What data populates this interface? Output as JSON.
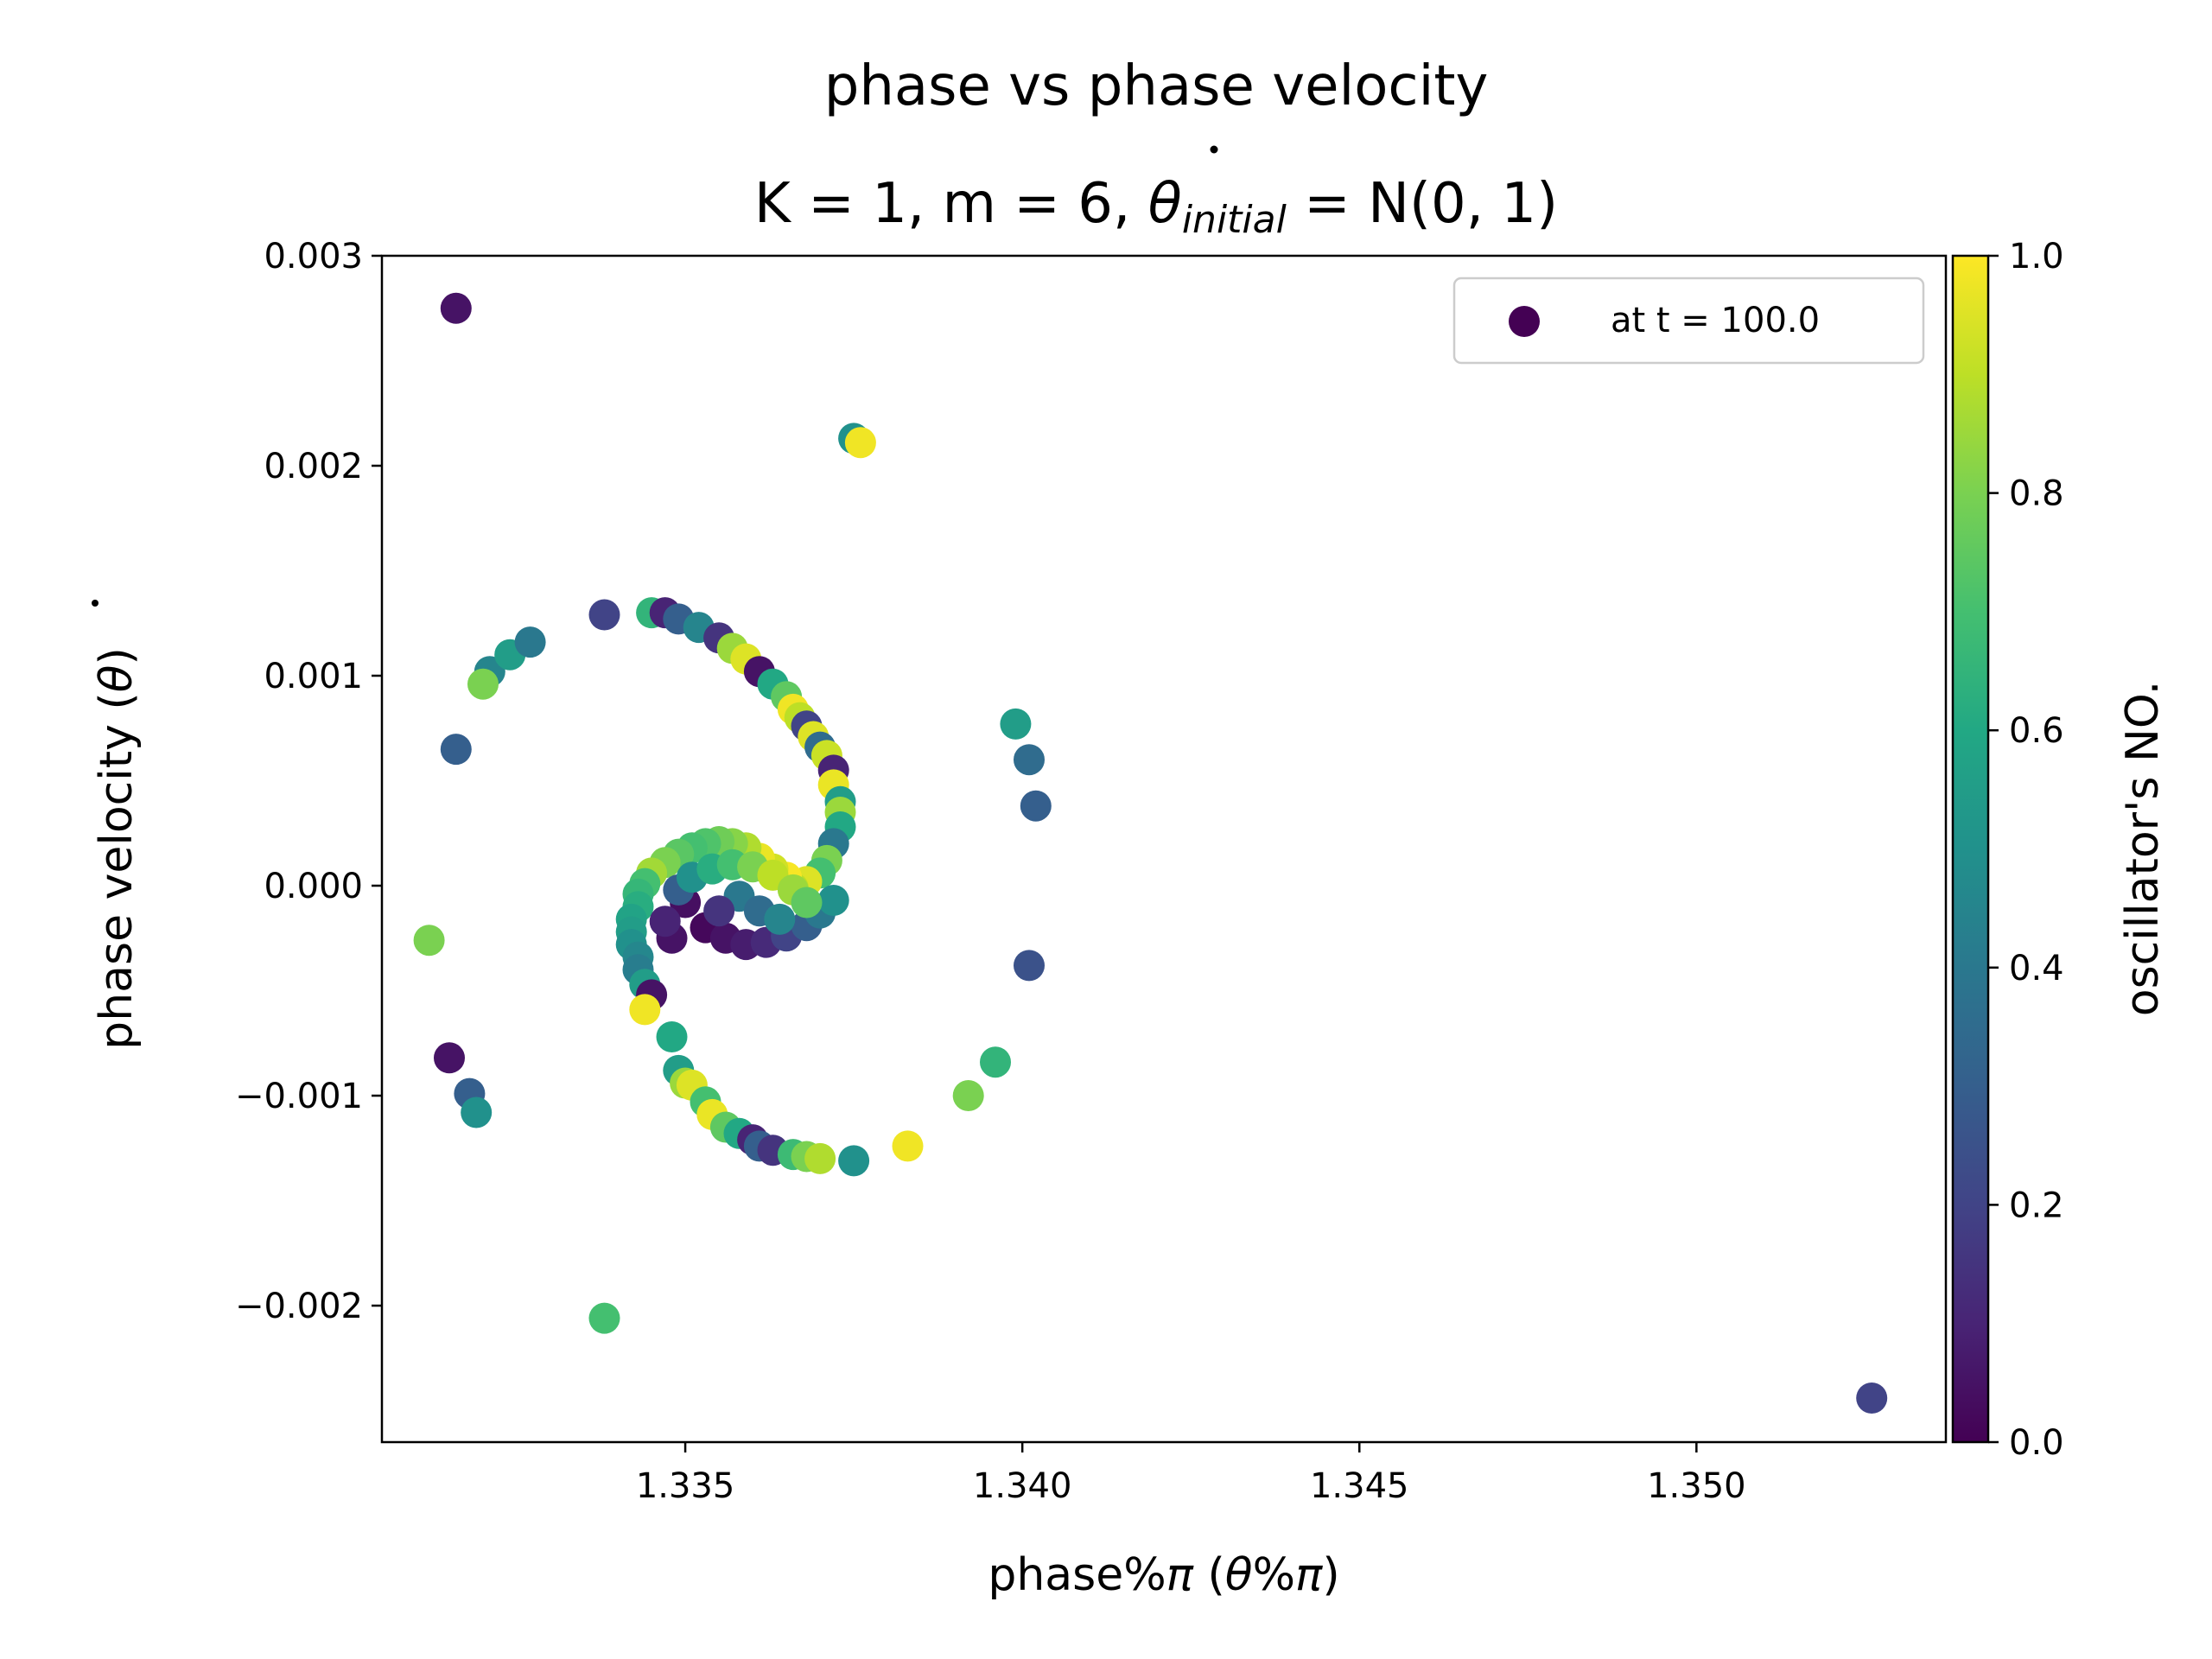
{
  "chart_data": {
    "type": "scatter",
    "title": "phase vs phase velocity",
    "subtitle": {
      "prefix": "K = 1, m = 6, ",
      "symbol": "θ",
      "subscript": "initial",
      "suffix": " = N(0, 1)"
    },
    "xlabel": {
      "prefix": "phase%",
      "pi": "π",
      "mid": " (",
      "theta": "θ",
      "pct": "%",
      "pi2": "π",
      "end": ")"
    },
    "ylabel": {
      "prefix": "phase velocity (",
      "theta": "θ",
      "end": ")"
    },
    "colorbar_label": "oscillator's NO.",
    "legend": {
      "label": "at t = 100.0",
      "position": "upper right"
    },
    "colormap": "viridis",
    "xlim": [
      1.3305,
      1.3537
    ],
    "ylim": [
      -0.00265,
      0.003
    ],
    "xticks": [
      1.335,
      1.34,
      1.345,
      1.35
    ],
    "xtick_labels": [
      "1.335",
      "1.340",
      "1.345",
      "1.350"
    ],
    "yticks": [
      -0.002,
      -0.001,
      0.0,
      0.001,
      0.002,
      0.003
    ],
    "ytick_labels": [
      "−0.002",
      "−0.001",
      "0.000",
      "0.001",
      "0.002",
      "0.003"
    ],
    "colorbar_ticks": [
      0.0,
      0.2,
      0.4,
      0.6,
      0.8,
      1.0
    ],
    "colorbar_tick_labels": [
      "0.0",
      "0.2",
      "0.4",
      "0.6",
      "0.8",
      "1.0"
    ],
    "grid": false,
    "series": [
      {
        "points": [
          {
            "x": 1.3316,
            "y": 0.00275,
            "c": 0.05
          },
          {
            "x": 1.3375,
            "y": 0.00213,
            "c": 0.5
          },
          {
            "x": 1.3376,
            "y": 0.00211,
            "c": 0.98
          },
          {
            "x": 1.3338,
            "y": 0.00129,
            "c": 0.2
          },
          {
            "x": 1.3345,
            "y": 0.0013,
            "c": 0.65
          },
          {
            "x": 1.3347,
            "y": 0.0013,
            "c": 0.1
          },
          {
            "x": 1.3349,
            "y": 0.00127,
            "c": 0.3
          },
          {
            "x": 1.3352,
            "y": 0.00123,
            "c": 0.45
          },
          {
            "x": 1.3355,
            "y": 0.00118,
            "c": 0.15
          },
          {
            "x": 1.3357,
            "y": 0.00113,
            "c": 0.85
          },
          {
            "x": 1.3359,
            "y": 0.00108,
            "c": 0.95
          },
          {
            "x": 1.3361,
            "y": 0.00102,
            "c": 0.05
          },
          {
            "x": 1.3363,
            "y": 0.00096,
            "c": 0.6
          },
          {
            "x": 1.3365,
            "y": 0.0009,
            "c": 0.75
          },
          {
            "x": 1.3366,
            "y": 0.00084,
            "c": 0.98
          },
          {
            "x": 1.3367,
            "y": 0.0008,
            "c": 0.9
          },
          {
            "x": 1.3368,
            "y": 0.00076,
            "c": 0.2
          },
          {
            "x": 1.3369,
            "y": 0.00071,
            "c": 0.95
          },
          {
            "x": 1.337,
            "y": 0.00066,
            "c": 0.35
          },
          {
            "x": 1.3371,
            "y": 0.00062,
            "c": 0.92
          },
          {
            "x": 1.3372,
            "y": 0.00055,
            "c": 0.1
          },
          {
            "x": 1.3372,
            "y": 0.00048,
            "c": 0.97
          },
          {
            "x": 1.3373,
            "y": 0.0004,
            "c": 0.55
          },
          {
            "x": 1.3373,
            "y": 0.00035,
            "c": 0.85
          },
          {
            "x": 1.3373,
            "y": 0.00028,
            "c": 0.6
          },
          {
            "x": 1.3372,
            "y": 0.0002,
            "c": 0.4
          },
          {
            "x": 1.3371,
            "y": 0.00012,
            "c": 0.8
          },
          {
            "x": 1.337,
            "y": 6e-05,
            "c": 0.7
          },
          {
            "x": 1.3368,
            "y": 2e-05,
            "c": 0.95
          },
          {
            "x": 1.3366,
            "y": -1e-05,
            "c": 0.9
          },
          {
            "x": 1.3365,
            "y": 4e-05,
            "c": 0.99
          },
          {
            "x": 1.3363,
            "y": 8e-05,
            "c": 0.93
          },
          {
            "x": 1.3361,
            "y": 0.00013,
            "c": 0.97
          },
          {
            "x": 1.3359,
            "y": 0.00018,
            "c": 0.88
          },
          {
            "x": 1.3357,
            "y": 0.0002,
            "c": 0.82
          },
          {
            "x": 1.3355,
            "y": 0.00021,
            "c": 0.78
          },
          {
            "x": 1.3353,
            "y": 0.0002,
            "c": 0.72
          },
          {
            "x": 1.3351,
            "y": 0.00018,
            "c": 0.7
          },
          {
            "x": 1.3349,
            "y": 0.00015,
            "c": 0.74
          },
          {
            "x": 1.3347,
            "y": 0.00011,
            "c": 0.8
          },
          {
            "x": 1.3345,
            "y": 6e-05,
            "c": 0.86
          },
          {
            "x": 1.3344,
            "y": 1e-05,
            "c": 0.7
          },
          {
            "x": 1.3343,
            "y": -4e-05,
            "c": 0.66
          },
          {
            "x": 1.3343,
            "y": -0.0001,
            "c": 0.62
          },
          {
            "x": 1.3342,
            "y": -0.00016,
            "c": 0.58
          },
          {
            "x": 1.3342,
            "y": -0.00022,
            "c": 0.55
          },
          {
            "x": 1.3342,
            "y": -0.00028,
            "c": 0.5
          },
          {
            "x": 1.3343,
            "y": -0.00034,
            "c": 0.46
          },
          {
            "x": 1.3343,
            "y": -0.0004,
            "c": 0.42
          },
          {
            "x": 1.3344,
            "y": -0.00047,
            "c": 0.55
          },
          {
            "x": 1.3345,
            "y": -0.00052,
            "c": 0.05
          },
          {
            "x": 1.3344,
            "y": -0.00059,
            "c": 0.98
          },
          {
            "x": 1.3348,
            "y": -0.00072,
            "c": 0.6
          },
          {
            "x": 1.3349,
            "y": -0.00088,
            "c": 0.55
          },
          {
            "x": 1.335,
            "y": -0.00094,
            "c": 0.85
          },
          {
            "x": 1.3351,
            "y": -0.00095,
            "c": 0.95
          },
          {
            "x": 1.3353,
            "y": -0.00103,
            "c": 0.7
          },
          {
            "x": 1.3354,
            "y": -0.00109,
            "c": 0.97
          },
          {
            "x": 1.3356,
            "y": -0.00115,
            "c": 0.75
          },
          {
            "x": 1.3358,
            "y": -0.00118,
            "c": 0.6
          },
          {
            "x": 1.336,
            "y": -0.00121,
            "c": 0.1
          },
          {
            "x": 1.3361,
            "y": -0.00124,
            "c": 0.3
          },
          {
            "x": 1.3363,
            "y": -0.00126,
            "c": 0.15
          },
          {
            "x": 1.3366,
            "y": -0.00128,
            "c": 0.68
          },
          {
            "x": 1.3368,
            "y": -0.00129,
            "c": 0.8
          },
          {
            "x": 1.337,
            "y": -0.0013,
            "c": 0.88
          },
          {
            "x": 1.3375,
            "y": -0.00131,
            "c": 0.5
          },
          {
            "x": 1.3383,
            "y": -0.00124,
            "c": 0.98
          },
          {
            "x": 1.3392,
            "y": -0.001,
            "c": 0.8
          },
          {
            "x": 1.3396,
            "y": -0.00084,
            "c": 0.65
          },
          {
            "x": 1.3399,
            "y": 0.00077,
            "c": 0.55
          },
          {
            "x": 1.3401,
            "y": 0.0006,
            "c": 0.35
          },
          {
            "x": 1.3402,
            "y": 0.00038,
            "c": 0.3
          },
          {
            "x": 1.3401,
            "y": -0.00038,
            "c": 0.25
          },
          {
            "x": 1.3353,
            "y": -0.0002,
            "c": 0.02
          },
          {
            "x": 1.3356,
            "y": -0.00025,
            "c": 0.05
          },
          {
            "x": 1.3359,
            "y": -0.00028,
            "c": 0.08
          },
          {
            "x": 1.3362,
            "y": -0.00027,
            "c": 0.12
          },
          {
            "x": 1.3365,
            "y": -0.00024,
            "c": 0.2
          },
          {
            "x": 1.3368,
            "y": -0.00019,
            "c": 0.3
          },
          {
            "x": 1.337,
            "y": -0.00013,
            "c": 0.4
          },
          {
            "x": 1.3372,
            "y": -7e-05,
            "c": 0.5
          },
          {
            "x": 1.335,
            "y": -8e-05,
            "c": 0.04
          },
          {
            "x": 1.3349,
            "y": -2e-05,
            "c": 0.3
          },
          {
            "x": 1.3351,
            "y": 4e-05,
            "c": 0.5
          },
          {
            "x": 1.3354,
            "y": 8e-05,
            "c": 0.62
          },
          {
            "x": 1.3357,
            "y": 0.0001,
            "c": 0.7
          },
          {
            "x": 1.336,
            "y": 9e-05,
            "c": 0.8
          },
          {
            "x": 1.3363,
            "y": 5e-05,
            "c": 0.9
          },
          {
            "x": 1.3366,
            "y": -2e-05,
            "c": 0.85
          },
          {
            "x": 1.3368,
            "y": -8e-05,
            "c": 0.75
          },
          {
            "x": 1.3358,
            "y": -5e-05,
            "c": 0.4
          },
          {
            "x": 1.3361,
            "y": -0.00012,
            "c": 0.35
          },
          {
            "x": 1.3364,
            "y": -0.00016,
            "c": 0.45
          },
          {
            "x": 1.3355,
            "y": -0.00012,
            "c": 0.15
          },
          {
            "x": 1.3348,
            "y": -0.00025,
            "c": 0.05
          },
          {
            "x": 1.3347,
            "y": -0.00017,
            "c": 0.1
          },
          {
            "x": 1.3321,
            "y": 0.00102,
            "c": 0.45
          },
          {
            "x": 1.3324,
            "y": 0.0011,
            "c": 0.55
          },
          {
            "x": 1.3327,
            "y": 0.00116,
            "c": 0.4
          },
          {
            "x": 1.332,
            "y": 0.00096,
            "c": 0.8
          },
          {
            "x": 1.3316,
            "y": 0.00065,
            "c": 0.3
          },
          {
            "x": 1.3312,
            "y": -0.00026,
            "c": 0.8
          },
          {
            "x": 1.3315,
            "y": -0.00082,
            "c": 0.05
          },
          {
            "x": 1.3318,
            "y": -0.00099,
            "c": 0.3
          },
          {
            "x": 1.3319,
            "y": -0.00108,
            "c": 0.5
          },
          {
            "x": 1.3338,
            "y": -0.00206,
            "c": 0.7
          },
          {
            "x": 1.3526,
            "y": -0.00244,
            "c": 0.2
          }
        ]
      }
    ]
  }
}
